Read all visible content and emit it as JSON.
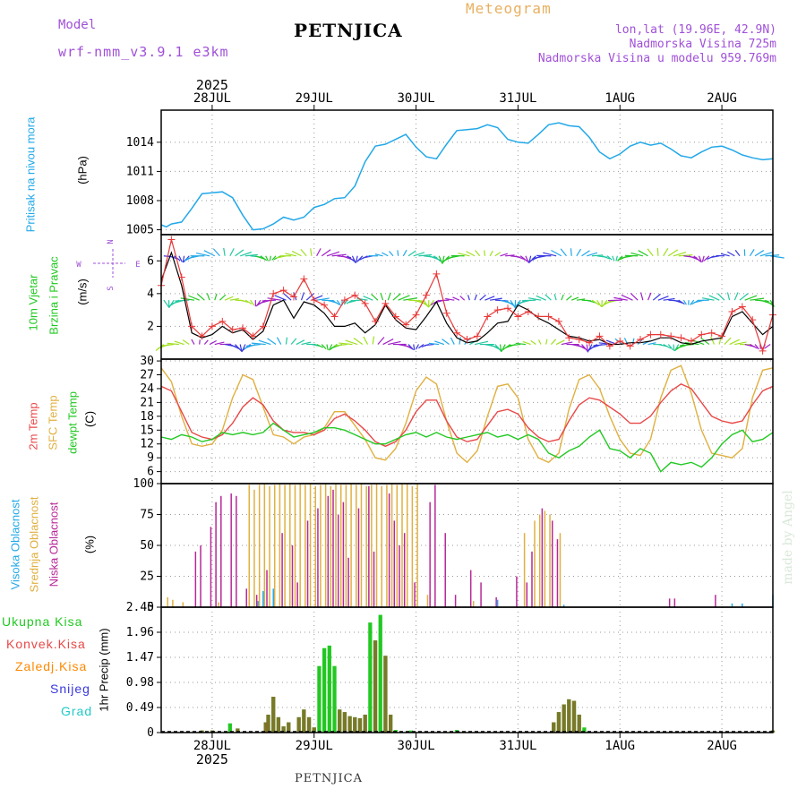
{
  "header": {
    "model_label": "Model",
    "model_name": "wrf-nmm_v3.9.1 e3km",
    "title": "PETNJICA",
    "meteogram": "Meteogram",
    "lonlat": "lon,lat (19.96E, 42.9N)",
    "altitude": "Nadmorska Visina 725m",
    "model_altitude": "Nadmorska Visina u modelu 959.769m",
    "bottom_title": "PETNJICA",
    "watermark": "made by Angel"
  },
  "colors": {
    "pressure": "#22a8e8",
    "wind_mean": "#000000",
    "wind_gust": "#e83838",
    "t2m": "#e84848",
    "tsfc": "#e0b040",
    "tdew": "#22c822",
    "cloud_high": "#22a8e8",
    "cloud_mid": "#e0b040",
    "cloud_low": "#b82898",
    "precip_total": "#22c822",
    "precip_conv": "#e84848",
    "precip_frz": "#ff8800",
    "precip_snow": "#3838e0",
    "precip_hail": "#22c8c8"
  },
  "chart_data": [
    {
      "type": "line",
      "name": "pressure",
      "ylabel_1": "Pritisak na nivou mora",
      "ylabel_unit": "(hPa)",
      "y_ticks": [
        "1014",
        "1011",
        "1008",
        "1005"
      ],
      "ylim": [
        1004.5,
        1017.3
      ],
      "x_hours_start": 0,
      "x_hours_end": 120,
      "date_top": [
        "2025",
        "28JUL",
        "29JUL",
        "30JUL",
        "31JUL",
        "1AUG",
        "2AUG"
      ],
      "x": [
        0,
        1,
        2,
        4,
        6,
        8,
        10,
        12,
        14,
        16,
        18,
        20,
        22,
        24,
        26,
        28,
        30,
        32,
        34,
        36,
        38,
        40,
        42,
        44,
        46,
        48,
        50,
        52,
        54,
        56,
        58,
        60,
        62,
        64,
        66,
        68,
        70,
        72,
        74,
        76,
        78,
        80,
        82,
        84,
        86,
        88,
        90,
        92,
        94,
        96,
        98,
        100,
        102,
        104,
        106,
        108,
        110,
        112,
        114,
        116,
        118,
        120
      ],
      "values": [
        1005.5,
        1005.3,
        1005.6,
        1005.8,
        1007.2,
        1008.7,
        1008.8,
        1008.9,
        1008.3,
        1006.5,
        1005.0,
        1005.1,
        1005.6,
        1006.3,
        1006.0,
        1006.3,
        1007.3,
        1007.6,
        1008.2,
        1008.3,
        1009.5,
        1012.0,
        1013.6,
        1013.8,
        1014.3,
        1014.8,
        1013.5,
        1012.5,
        1012.3,
        1013.8,
        1015.2,
        1015.3,
        1015.4,
        1015.8,
        1015.5,
        1014.3,
        1014.0,
        1013.9,
        1014.8,
        1015.8,
        1016.0,
        1015.7,
        1015.6,
        1014.5,
        1013.0,
        1012.3,
        1012.8,
        1013.6,
        1014.0,
        1013.7,
        1013.9,
        1013.3,
        1012.6,
        1012.4,
        1013.0,
        1013.5,
        1013.6,
        1013.2,
        1012.7,
        1012.4,
        1012.2,
        1012.3
      ]
    },
    {
      "type": "line",
      "name": "wind",
      "ylabel_1": "10m Vjetar",
      "ylabel_2": "Brzina i Pravac",
      "ylabel_unit": "(m/s)",
      "compass": "N S W E",
      "y_ticks": [
        "6",
        "4",
        "2"
      ],
      "ylim": [
        0,
        7.6
      ],
      "x": [
        0,
        2,
        4,
        6,
        8,
        10,
        12,
        14,
        16,
        18,
        20,
        22,
        24,
        26,
        28,
        30,
        32,
        34,
        36,
        38,
        40,
        42,
        44,
        46,
        48,
        50,
        52,
        54,
        56,
        58,
        60,
        62,
        64,
        66,
        68,
        70,
        72,
        74,
        76,
        78,
        80,
        82,
        84,
        86,
        88,
        90,
        92,
        94,
        96,
        98,
        100,
        102,
        104,
        106,
        108,
        110,
        112,
        114,
        116,
        118,
        120
      ],
      "mean": [
        4.8,
        6.5,
        4.5,
        1.6,
        1.3,
        1.5,
        2.0,
        1.6,
        1.8,
        1.2,
        1.7,
        3.3,
        3.6,
        2.5,
        3.5,
        3.3,
        2.8,
        2.0,
        2.0,
        2.2,
        1.6,
        2.1,
        3.3,
        2.4,
        1.9,
        1.8,
        2.6,
        3.5,
        2.2,
        1.3,
        1.0,
        1.1,
        1.6,
        2.2,
        2.3,
        3.3,
        3.0,
        2.5,
        2.2,
        1.8,
        1.4,
        1.3,
        1.1,
        1.2,
        0.9,
        0.9,
        1.0,
        1.0,
        1.1,
        1.3,
        1.3,
        1.0,
        0.9,
        1.1,
        1.2,
        1.3,
        2.6,
        2.9,
        2.2,
        1.5,
        2.0
      ],
      "gust": [
        4.5,
        7.3,
        5.0,
        2.0,
        1.4,
        2.0,
        2.3,
        1.8,
        1.9,
        1.4,
        2.0,
        4.0,
        4.2,
        3.8,
        4.9,
        3.6,
        3.3,
        2.6,
        3.6,
        3.9,
        3.4,
        2.3,
        3.4,
        2.6,
        2.1,
        2.7,
        3.9,
        5.2,
        2.8,
        1.6,
        1.2,
        1.4,
        2.6,
        3.0,
        3.1,
        2.6,
        2.9,
        2.6,
        2.6,
        2.3,
        1.3,
        1.2,
        1.0,
        1.4,
        0.8,
        1.1,
        0.8,
        1.2,
        1.5,
        1.5,
        1.4,
        1.3,
        1.1,
        1.5,
        1.6,
        1.4,
        2.9,
        3.2,
        2.4,
        0.5,
        2.7
      ]
    },
    {
      "type": "line",
      "name": "temperature",
      "ylabel_1": "2m Temp",
      "ylabel_2": "SFC Temp",
      "ylabel_3": "dewpt Temp",
      "ylabel_unit": "(C)",
      "y_ticks": [
        "30",
        "27",
        "24",
        "21",
        "18",
        "15",
        "12",
        "9",
        "6"
      ],
      "ylim": [
        3.4,
        30.4
      ],
      "x": [
        0,
        2,
        4,
        6,
        8,
        10,
        12,
        14,
        16,
        18,
        20,
        22,
        24,
        26,
        28,
        30,
        32,
        34,
        36,
        38,
        40,
        42,
        44,
        46,
        48,
        50,
        52,
        54,
        56,
        58,
        60,
        62,
        64,
        66,
        68,
        70,
        72,
        74,
        76,
        78,
        80,
        82,
        84,
        86,
        88,
        90,
        92,
        94,
        96,
        98,
        100,
        102,
        104,
        106,
        108,
        110,
        112,
        114,
        116,
        118,
        120
      ],
      "t2m": [
        24.5,
        23.5,
        19.0,
        14.5,
        13.5,
        13.0,
        14.0,
        16.5,
        20.0,
        22.0,
        20.5,
        17.0,
        15.0,
        14.5,
        14.5,
        14.0,
        15.0,
        17.5,
        18.5,
        17.0,
        15.0,
        12.5,
        11.5,
        12.5,
        15.0,
        19.0,
        21.5,
        21.5,
        17.0,
        13.5,
        12.5,
        13.0,
        16.0,
        19.0,
        19.5,
        18.5,
        15.5,
        13.5,
        12.5,
        13.0,
        17.0,
        20.5,
        22.0,
        21.5,
        20.0,
        18.5,
        16.5,
        16.5,
        18.0,
        21.0,
        23.5,
        25.0,
        24.0,
        21.0,
        18.0,
        17.0,
        16.5,
        17.0,
        20.5,
        23.5,
        24.5
      ],
      "tsfc": [
        28.5,
        25.5,
        18.0,
        12.0,
        11.5,
        12.0,
        15.0,
        22.0,
        27.0,
        26.0,
        20.0,
        14.0,
        13.5,
        12.0,
        13.5,
        14.0,
        15.5,
        19.0,
        19.0,
        16.0,
        13.0,
        9.0,
        8.5,
        11.0,
        16.5,
        23.5,
        26.5,
        25.0,
        17.0,
        10.0,
        8.0,
        10.5,
        18.0,
        24.5,
        25.0,
        22.0,
        13.0,
        9.0,
        8.0,
        10.0,
        19.5,
        26.0,
        27.0,
        24.0,
        18.0,
        13.0,
        10.0,
        9.5,
        13.0,
        22.0,
        28.0,
        29.0,
        23.0,
        15.0,
        10.0,
        9.5,
        9.0,
        11.0,
        22.0,
        28.0,
        28.5
      ],
      "tdew": [
        13.5,
        13.0,
        14.0,
        13.5,
        12.5,
        13.0,
        14.5,
        14.0,
        14.5,
        14.0,
        14.5,
        16.5,
        15.0,
        13.5,
        14.0,
        14.5,
        15.5,
        15.5,
        15.0,
        14.0,
        13.0,
        12.0,
        12.0,
        13.0,
        14.0,
        14.5,
        13.5,
        14.5,
        13.5,
        13.0,
        13.5,
        14.0,
        14.5,
        13.5,
        14.0,
        13.0,
        14.0,
        13.0,
        10.0,
        9.0,
        10.5,
        11.5,
        13.5,
        15.0,
        11.0,
        10.5,
        9.0,
        11.0,
        10.0,
        6.0,
        8.0,
        7.5,
        8.0,
        7.0,
        9.0,
        12.0,
        14.0,
        15.0,
        12.5,
        13.0,
        14.5
      ]
    },
    {
      "type": "bar",
      "name": "cloud",
      "ylabel_1": "Visoka Oblacnost",
      "ylabel_2": "Srednja Oblacnost",
      "ylabel_3": "Niska Oblacnost",
      "ylabel_unit": "(%)",
      "y_ticks": [
        "100",
        "75",
        "50",
        "25",
        "0"
      ],
      "ylim": [
        0,
        100
      ],
      "high": [
        [
          19,
          5
        ],
        [
          20,
          13
        ],
        [
          22,
          15
        ],
        [
          66,
          6
        ],
        [
          79,
          2
        ],
        [
          112,
          3
        ],
        [
          114,
          3
        ],
        [
          120,
          10
        ]
      ],
      "mid": [
        [
          1,
          8
        ],
        [
          2,
          6
        ],
        [
          4,
          4
        ],
        [
          11,
          4
        ],
        [
          17,
          99
        ],
        [
          18,
          95
        ],
        [
          19,
          99
        ],
        [
          20,
          100
        ],
        [
          21,
          98
        ],
        [
          22,
          99
        ],
        [
          23,
          100
        ],
        [
          24,
          99
        ],
        [
          25,
          100
        ],
        [
          26,
          99
        ],
        [
          27,
          100
        ],
        [
          28,
          99
        ],
        [
          29,
          100
        ],
        [
          30,
          98
        ],
        [
          31,
          99
        ],
        [
          32,
          100
        ],
        [
          33,
          98
        ],
        [
          34,
          100
        ],
        [
          35,
          99
        ],
        [
          36,
          99
        ],
        [
          37,
          100
        ],
        [
          38,
          99
        ],
        [
          39,
          100
        ],
        [
          40,
          98
        ],
        [
          41,
          99
        ],
        [
          42,
          100
        ],
        [
          43,
          98
        ],
        [
          44,
          99
        ],
        [
          45,
          100
        ],
        [
          46,
          99
        ],
        [
          47,
          100
        ],
        [
          48,
          100
        ],
        [
          49,
          98
        ],
        [
          50,
          100
        ],
        [
          52,
          10
        ],
        [
          61,
          5
        ],
        [
          71,
          60
        ],
        [
          73,
          70
        ],
        [
          74,
          75
        ],
        [
          75,
          78
        ],
        [
          76,
          75
        ],
        [
          78,
          60
        ]
      ],
      "low": [
        [
          7,
          45
        ],
        [
          8,
          50
        ],
        [
          10,
          65
        ],
        [
          11,
          85
        ],
        [
          12,
          90
        ],
        [
          14,
          92
        ],
        [
          15,
          90
        ],
        [
          17,
          15
        ],
        [
          19,
          10
        ],
        [
          21,
          30
        ],
        [
          24,
          60
        ],
        [
          26,
          50
        ],
        [
          27,
          20
        ],
        [
          29,
          70
        ],
        [
          31,
          80
        ],
        [
          33,
          90
        ],
        [
          34,
          95
        ],
        [
          35,
          75
        ],
        [
          36,
          85
        ],
        [
          37,
          40
        ],
        [
          39,
          80
        ],
        [
          41,
          98
        ],
        [
          42,
          45
        ],
        [
          45,
          92
        ],
        [
          46,
          70
        ],
        [
          47,
          50
        ],
        [
          48,
          60
        ],
        [
          50,
          20
        ],
        [
          53,
          85
        ],
        [
          54,
          99
        ],
        [
          56,
          60
        ],
        [
          58,
          10
        ],
        [
          61,
          30
        ],
        [
          63,
          20
        ],
        [
          66,
          8
        ],
        [
          70,
          25
        ],
        [
          72,
          20
        ],
        [
          73,
          45
        ],
        [
          75,
          80
        ],
        [
          77,
          70
        ],
        [
          78,
          55
        ],
        [
          100,
          7
        ],
        [
          101,
          7
        ],
        [
          109,
          10
        ]
      ]
    },
    {
      "type": "bar",
      "name": "precipitation",
      "ylabel_1": "Ukupna Kisa",
      "ylabel_2": "Konvek.Kisa",
      "ylabel_3": "Zaledj.Kisa",
      "ylabel_4": "Snijeg",
      "ylabel_5": "Grad",
      "ylabel_unit": "1hr Precip (mm)",
      "y_ticks": [
        "2.45",
        "1.96",
        "1.47",
        "0.98",
        "0.49",
        "0"
      ],
      "ylim": [
        0,
        2.45
      ],
      "date_bottom": [
        "28JUL",
        "29JUL",
        "30JUL",
        "31JUL",
        "1AUG",
        "2AUG",
        "2025"
      ],
      "total": [
        [
          8,
          0.04
        ],
        [
          10,
          0.04
        ],
        [
          13.5,
          0.18
        ],
        [
          15,
          0.08
        ],
        [
          20.5,
          0.2
        ],
        [
          21,
          0.35
        ],
        [
          22,
          0.7
        ],
        [
          23,
          0.3
        ],
        [
          24,
          0.12
        ],
        [
          25,
          0.2
        ],
        [
          27,
          0.3
        ],
        [
          28,
          0.45
        ],
        [
          29,
          0.3
        ],
        [
          30,
          0.1
        ],
        [
          31,
          1.3
        ],
        [
          32,
          1.65
        ],
        [
          33,
          1.7
        ],
        [
          34,
          1.3
        ],
        [
          35,
          0.45
        ],
        [
          36,
          0.4
        ],
        [
          37,
          0.32
        ],
        [
          38,
          0.3
        ],
        [
          39,
          0.28
        ],
        [
          40,
          0.35
        ],
        [
          41,
          2.15
        ],
        [
          42,
          1.8
        ],
        [
          43,
          2.3
        ],
        [
          44,
          1.5
        ],
        [
          45,
          0.35
        ],
        [
          46,
          0.05
        ],
        [
          49,
          0.04
        ],
        [
          58,
          0.05
        ],
        [
          77,
          0.2
        ],
        [
          78,
          0.4
        ],
        [
          79,
          0.55
        ],
        [
          80,
          0.65
        ],
        [
          81,
          0.62
        ],
        [
          82,
          0.35
        ],
        [
          83,
          0.1
        ],
        [
          120,
          0.04
        ]
      ],
      "conv": [
        [
          8,
          0.04
        ],
        [
          10,
          0.04
        ],
        [
          15,
          0.08
        ],
        [
          20.5,
          0.2
        ],
        [
          21,
          0.35
        ],
        [
          22,
          0.7
        ],
        [
          23,
          0.3
        ],
        [
          24,
          0.12
        ],
        [
          25,
          0.2
        ],
        [
          27,
          0.3
        ],
        [
          28,
          0.45
        ],
        [
          29,
          0.3
        ],
        [
          30,
          0.1
        ],
        [
          35,
          0.45
        ],
        [
          36,
          0.4
        ],
        [
          37,
          0.32
        ],
        [
          38,
          0.3
        ],
        [
          39,
          0.28
        ],
        [
          40,
          0.35
        ],
        [
          42,
          1.8
        ],
        [
          44,
          1.5
        ],
        [
          45,
          0.35
        ],
        [
          77,
          0.2
        ],
        [
          78,
          0.4
        ],
        [
          79,
          0.55
        ],
        [
          80,
          0.65
        ],
        [
          81,
          0.62
        ],
        [
          82,
          0.35
        ],
        [
          120,
          0.04
        ]
      ]
    }
  ]
}
